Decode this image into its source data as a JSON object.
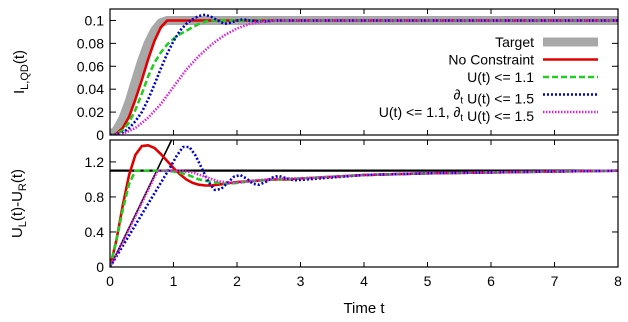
{
  "chart_data": [
    {
      "type": "line",
      "xlabel": "",
      "ylabel": "I_{L,QD}(t)",
      "ylabel_parts": {
        "main": "I",
        "sub": "L,QD",
        "tail": "(t)"
      },
      "xlim": [
        0,
        8
      ],
      "ylim": [
        0,
        0.11
      ],
      "xticks": [
        0,
        1,
        2,
        3,
        4,
        5,
        6,
        7,
        8
      ],
      "yticks": [
        0,
        0.02,
        0.04,
        0.06,
        0.08,
        0.1
      ],
      "ytick_labels": [
        "0",
        "0.02",
        "0.04",
        "0.06",
        "0.08",
        "0.1"
      ],
      "grid": false,
      "legend_position": "right",
      "series": [
        {
          "name": "Target",
          "color": "#a8a8a8",
          "dash": "solid",
          "x": [
            0,
            0.1,
            0.2,
            0.3,
            0.4,
            0.5,
            0.6,
            0.7,
            0.8,
            0.9,
            1.0,
            1.2,
            8
          ],
          "y": [
            0,
            0.004,
            0.014,
            0.029,
            0.047,
            0.065,
            0.08,
            0.091,
            0.098,
            0.1,
            0.1,
            0.1,
            0.1
          ]
        },
        {
          "name": "No Constraint",
          "color": "#e00000",
          "dash": "solid",
          "x": [
            0,
            0.1,
            0.2,
            0.3,
            0.4,
            0.5,
            0.6,
            0.7,
            0.8,
            0.9,
            1.0,
            1.2,
            1.5,
            2.0,
            8
          ],
          "y": [
            0,
            0.001,
            0.006,
            0.016,
            0.031,
            0.048,
            0.066,
            0.082,
            0.094,
            0.1,
            0.1,
            0.1,
            0.1,
            0.1,
            0.1
          ]
        },
        {
          "name": "U(t) <= 1.1",
          "color": "#22cc22",
          "dash": "6,3",
          "x": [
            0,
            0.1,
            0.2,
            0.3,
            0.4,
            0.5,
            0.6,
            0.7,
            0.8,
            0.9,
            1.0,
            1.1,
            1.2,
            1.3,
            1.4,
            1.5,
            1.6,
            1.8,
            2.0,
            8
          ],
          "y": [
            0,
            0.001,
            0.004,
            0.011,
            0.022,
            0.036,
            0.051,
            0.063,
            0.072,
            0.079,
            0.084,
            0.088,
            0.091,
            0.094,
            0.097,
            0.099,
            0.1,
            0.1,
            0.1,
            0.1
          ]
        },
        {
          "name": "∂t U(t) <= 1.5",
          "color": "#0000cc",
          "dash": "2,2",
          "x": [
            0,
            0.1,
            0.2,
            0.3,
            0.4,
            0.5,
            0.6,
            0.7,
            0.8,
            0.9,
            1.0,
            1.1,
            1.2,
            1.3,
            1.4,
            1.5,
            1.6,
            1.7,
            1.8,
            1.9,
            2.0,
            2.1,
            2.2,
            2.4,
            2.6,
            3.0,
            8
          ],
          "y": [
            0,
            0.0003,
            0.002,
            0.006,
            0.012,
            0.02,
            0.031,
            0.044,
            0.058,
            0.071,
            0.082,
            0.091,
            0.097,
            0.101,
            0.104,
            0.105,
            0.103,
            0.1,
            0.097,
            0.098,
            0.1,
            0.101,
            0.1,
            0.099,
            0.1,
            0.1,
            0.1
          ]
        },
        {
          "name": "U(t) <= 1.1, ∂t U(t) <= 1.5",
          "color": "#dd22dd",
          "dash": "1.5,1.5",
          "x": [
            0,
            0.2,
            0.4,
            0.6,
            0.8,
            1.0,
            1.2,
            1.4,
            1.6,
            1.8,
            2.0,
            2.2,
            2.4,
            2.6,
            3.0,
            8
          ],
          "y": [
            0,
            0.001,
            0.006,
            0.015,
            0.027,
            0.042,
            0.057,
            0.069,
            0.079,
            0.087,
            0.093,
            0.097,
            0.099,
            0.1,
            0.1,
            0.1
          ]
        }
      ]
    },
    {
      "type": "line",
      "xlabel": "Time t",
      "ylabel": "U_L(t)-U_R(t)",
      "ylabel_parts": [
        {
          "main": "U",
          "sub": "L",
          "tail": "(t)-"
        },
        {
          "main": "U",
          "sub": "R",
          "tail": "(t)"
        }
      ],
      "xlim": [
        0,
        8
      ],
      "ylim": [
        0,
        1.45
      ],
      "xticks": [
        0,
        1,
        2,
        3,
        4,
        5,
        6,
        7,
        8
      ],
      "yticks": [
        0,
        0.4,
        0.8,
        1.2
      ],
      "ytick_labels": [
        "0",
        "0.4",
        "0.8",
        "1.2"
      ],
      "grid": false,
      "reference_lines": [
        {
          "kind": "horizontal",
          "y": 1.1,
          "color": "#000000"
        },
        {
          "kind": "ramp",
          "x": [
            0,
            0.97
          ],
          "y": [
            0,
            1.45
          ],
          "color": "#000000"
        }
      ],
      "series": [
        {
          "name": "No Constraint",
          "color": "#e00000",
          "dash": "solid",
          "x": [
            0,
            0.1,
            0.2,
            0.3,
            0.4,
            0.5,
            0.6,
            0.7,
            0.8,
            0.9,
            1.0,
            1.1,
            1.2,
            1.3,
            1.4,
            1.5,
            1.6,
            1.7,
            1.8,
            2.0,
            2.2,
            2.4,
            2.6,
            2.8,
            3.0,
            3.5,
            4.0,
            5.0,
            6.0,
            7.0,
            8.0
          ],
          "y": [
            0,
            0.3,
            0.7,
            1.05,
            1.28,
            1.38,
            1.39,
            1.36,
            1.29,
            1.21,
            1.13,
            1.06,
            1.0,
            0.96,
            0.94,
            0.93,
            0.93,
            0.94,
            0.95,
            0.97,
            0.98,
            0.99,
            1.0,
            1.0,
            1.01,
            1.03,
            1.05,
            1.07,
            1.08,
            1.09,
            1.1
          ]
        },
        {
          "name": "U(t) <= 1.1",
          "color": "#22cc22",
          "dash": "6,3",
          "x": [
            0,
            0.1,
            0.2,
            0.3,
            0.4,
            0.5,
            0.6,
            0.7,
            0.8,
            1.0,
            1.2,
            1.4,
            1.6,
            1.8,
            2.0,
            2.2,
            2.4,
            2.6,
            3.0,
            4.0,
            5.0,
            6.0,
            7.0,
            8.0
          ],
          "y": [
            0,
            0.3,
            0.65,
            0.95,
            1.1,
            1.1,
            1.1,
            1.1,
            1.1,
            1.09,
            1.06,
            1.0,
            0.97,
            0.95,
            0.96,
            0.98,
            0.99,
            1.0,
            1.01,
            1.05,
            1.07,
            1.08,
            1.09,
            1.1
          ]
        },
        {
          "name": "∂t U(t) <= 1.5",
          "color": "#0000cc",
          "dash": "2,2",
          "x": [
            0,
            0.2,
            0.4,
            0.6,
            0.8,
            0.95,
            1.05,
            1.15,
            1.25,
            1.35,
            1.45,
            1.55,
            1.65,
            1.75,
            1.85,
            1.95,
            2.05,
            2.15,
            2.25,
            2.35,
            2.45,
            2.55,
            2.65,
            2.75,
            2.9,
            3.1,
            4.0,
            5.0,
            6.0,
            7.0,
            8.0
          ],
          "y": [
            0,
            0.24,
            0.48,
            0.72,
            0.96,
            1.14,
            1.27,
            1.37,
            1.37,
            1.27,
            1.12,
            0.97,
            0.88,
            0.89,
            0.96,
            1.03,
            1.05,
            1.01,
            0.95,
            0.94,
            0.97,
            1.02,
            1.04,
            1.02,
            0.99,
            1.0,
            1.05,
            1.07,
            1.08,
            1.09,
            1.1
          ]
        },
        {
          "name": "U(t) <= 1.1, ∂t U(t) <= 1.5",
          "color": "#dd22dd",
          "dash": "1.5,1.5",
          "x": [
            0,
            0.2,
            0.4,
            0.6,
            0.75,
            0.9,
            1.1,
            1.3,
            1.5,
            1.7,
            1.9,
            2.1,
            2.3,
            2.5,
            2.7,
            3.0,
            4.0,
            5.0,
            6.0,
            7.0,
            8.0
          ],
          "y": [
            0,
            0.28,
            0.58,
            0.88,
            1.1,
            1.1,
            1.1,
            1.08,
            1.03,
            0.98,
            0.96,
            0.97,
            0.99,
            1.0,
            1.01,
            1.01,
            1.05,
            1.07,
            1.08,
            1.09,
            1.1
          ]
        }
      ]
    }
  ]
}
